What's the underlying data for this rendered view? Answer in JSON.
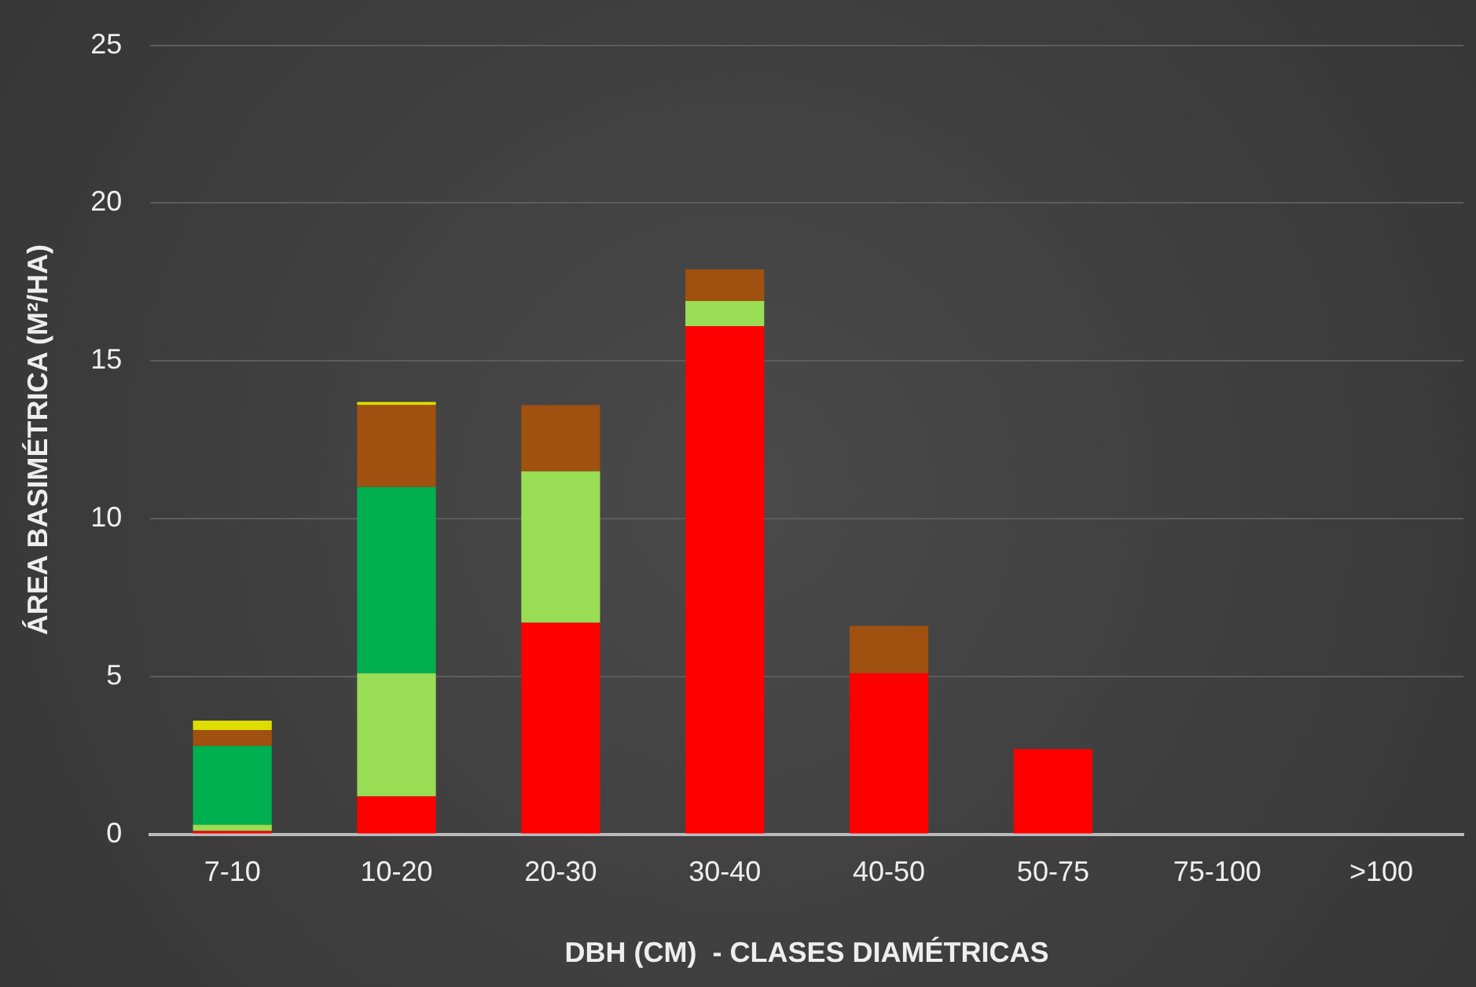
{
  "chart_data": {
    "type": "bar",
    "stacked": true,
    "xlabel": "DBH (CM)  - CLASES DIAMÉTRICAS",
    "ylabel": "ÁREA BASIMÉTRICA (M²/HA)",
    "categories": [
      "7-10",
      "10-20",
      "20-30",
      "30-40",
      "40-50",
      "50-75",
      "75-100",
      ">100"
    ],
    "series": [
      {
        "color": "#ff0000",
        "values": [
          0.1,
          1.2,
          6.7,
          16.1,
          5.1,
          2.7,
          null,
          null
        ]
      },
      {
        "color": "#99dd55",
        "values": [
          0.2,
          3.9,
          4.8,
          0.8,
          null,
          null,
          null,
          null
        ]
      },
      {
        "color": "#00b050",
        "values": [
          2.5,
          5.9,
          null,
          null,
          null,
          null,
          null,
          null
        ]
      },
      {
        "color": "#a0500f",
        "values": [
          0.5,
          2.6,
          2.1,
          1.0,
          1.5,
          null,
          null,
          null
        ]
      },
      {
        "color": "#dddd00",
        "values": [
          0.3,
          0.1,
          null,
          null,
          null,
          null,
          null,
          null
        ]
      }
    ],
    "ylim": [
      0,
      25
    ],
    "yticks": [
      0,
      5,
      10,
      15,
      20,
      25
    ],
    "grid": "y",
    "legend": false
  }
}
